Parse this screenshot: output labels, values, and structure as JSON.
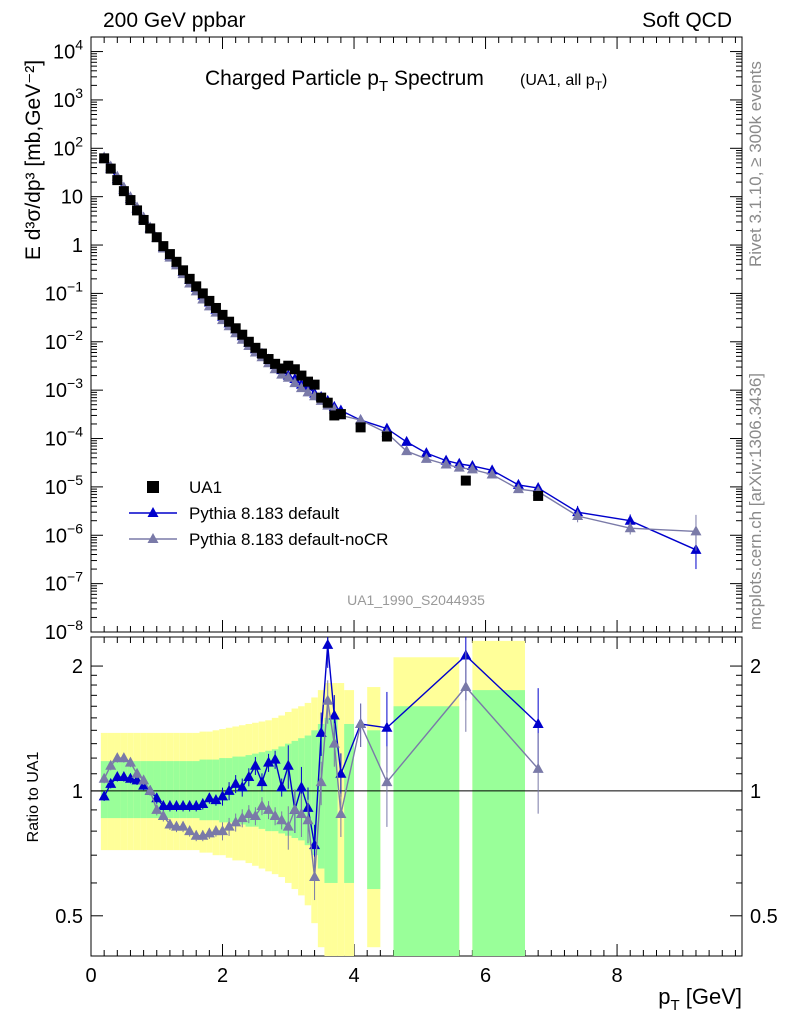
{
  "header": {
    "left": "200 GeV ppbar",
    "right": "Soft QCD"
  },
  "side_labels": {
    "rivet": "Rivet 3.1.10, ≥ 300k events",
    "mcplots": "mcplots.cern.ch [arXiv:1306.3436]"
  },
  "colors": {
    "data": "#000000",
    "default": "#0000cc",
    "nocr": "#7a7aa8",
    "band_inner": "#99ff99",
    "band_outer": "#ffff99"
  },
  "chart_data": [
    {
      "type": "line",
      "scale": "log",
      "title": "Charged Particle p",
      "title_sub": "T",
      "title_main_rest": " Spectrum",
      "title_note": "(UA1, all p",
      "title_note_sub": "T",
      "title_note_end": ")",
      "ylabel": "E d³σ/dp³ [mb,GeV⁻²]",
      "ylim": [
        1e-08,
        20000.0
      ],
      "xlim": [
        0,
        9.9
      ],
      "analysis": "UA1_1990_S2044935",
      "y_ticks": [
        {
          "v": 1e-08,
          "base": "10",
          "exp": "−8"
        },
        {
          "v": 1e-07,
          "base": "10",
          "exp": "−7"
        },
        {
          "v": 1e-06,
          "base": "10",
          "exp": "−6"
        },
        {
          "v": 1e-05,
          "base": "10",
          "exp": "−5"
        },
        {
          "v": 0.0001,
          "base": "10",
          "exp": "−4"
        },
        {
          "v": 0.001,
          "base": "10",
          "exp": "−3"
        },
        {
          "v": 0.01,
          "base": "10",
          "exp": "−2"
        },
        {
          "v": 0.1,
          "base": "10",
          "exp": "−1"
        },
        {
          "v": 1,
          "base": "1",
          "exp": ""
        },
        {
          "v": 10,
          "base": "10",
          "exp": ""
        },
        {
          "v": 100,
          "base": "10",
          "exp": "2"
        },
        {
          "v": 1000,
          "base": "10",
          "exp": "3"
        },
        {
          "v": 10000,
          "base": "10",
          "exp": "4"
        }
      ],
      "legend": [
        "UA1",
        "Pythia 8.183 default",
        "Pythia 8.183 default-noCR"
      ],
      "x": [
        0.2,
        0.3,
        0.4,
        0.5,
        0.6,
        0.7,
        0.8,
        0.9,
        1.0,
        1.1,
        1.2,
        1.3,
        1.4,
        1.5,
        1.6,
        1.7,
        1.8,
        1.9,
        2.0,
        2.1,
        2.2,
        2.3,
        2.4,
        2.5,
        2.6,
        2.7,
        2.8,
        2.9,
        3.0,
        3.1,
        3.2,
        3.3,
        3.4,
        3.5,
        3.6,
        3.7,
        3.8,
        4.1,
        4.5,
        5.7,
        6.8
      ],
      "series": [
        {
          "name": "UA1",
          "values": [
            62,
            38,
            22,
            13,
            8.5,
            5.2,
            3.3,
            2.2,
            1.45,
            0.95,
            0.65,
            0.45,
            0.3,
            0.2,
            0.14,
            0.1,
            0.07,
            0.05,
            0.036,
            0.026,
            0.019,
            0.014,
            0.01,
            0.0075,
            0.0057,
            0.0044,
            0.0035,
            0.0028,
            0.0032,
            0.0027,
            0.002,
            0.0015,
            0.0013,
            0.0007,
            0.00055,
            0.0003,
            0.00032,
            0.00017,
            0.00011,
            1.35e-05,
            6.5e-06
          ]
        },
        {
          "name": "Pythia 8.183 default",
          "x": [
            0.2,
            0.3,
            0.4,
            0.5,
            0.6,
            0.7,
            0.8,
            0.9,
            1.0,
            1.1,
            1.2,
            1.3,
            1.4,
            1.5,
            1.6,
            1.7,
            1.8,
            1.9,
            2.0,
            2.1,
            2.2,
            2.3,
            2.4,
            2.5,
            2.6,
            2.7,
            2.8,
            2.9,
            3.0,
            3.1,
            3.2,
            3.3,
            3.4,
            3.5,
            3.6,
            3.7,
            3.8,
            4.1,
            4.5,
            4.8,
            5.1,
            5.4,
            5.6,
            5.8,
            6.1,
            6.5,
            6.8,
            7.4,
            8.2,
            9.2
          ],
          "values": [
            60,
            38,
            23,
            14,
            9,
            5.6,
            3.5,
            2.2,
            1.4,
            0.9,
            0.6,
            0.42,
            0.28,
            0.19,
            0.13,
            0.09,
            0.065,
            0.046,
            0.033,
            0.024,
            0.018,
            0.013,
            0.0095,
            0.007,
            0.0056,
            0.0043,
            0.0033,
            0.0026,
            0.002,
            0.0017,
            0.0013,
            0.0012,
            0.00085,
            0.00072,
            0.0006,
            0.00045,
            0.00038,
            0.00024,
            0.00016,
            8.5e-05,
            5e-05,
            3.5e-05,
            3e-05,
            2.7e-05,
            2.2e-05,
            1.1e-05,
            9.5e-06,
            3e-06,
            2e-06,
            5e-07
          ]
        },
        {
          "name": "Pythia 8.183 default-noCR",
          "x": [
            0.2,
            0.3,
            0.4,
            0.5,
            0.6,
            0.7,
            0.8,
            0.9,
            1.0,
            1.1,
            1.2,
            1.3,
            1.4,
            1.5,
            1.6,
            1.7,
            1.8,
            1.9,
            2.0,
            2.1,
            2.2,
            2.3,
            2.4,
            2.5,
            2.6,
            2.7,
            2.8,
            2.9,
            3.0,
            3.1,
            3.2,
            3.3,
            3.4,
            3.5,
            3.6,
            3.7,
            3.8,
            4.1,
            4.5,
            4.8,
            5.1,
            5.4,
            5.6,
            5.8,
            6.1,
            6.5,
            6.8,
            7.4,
            8.2,
            9.2
          ],
          "values": [
            65,
            42,
            26,
            15.5,
            9.8,
            6,
            3.7,
            2.3,
            1.4,
            0.85,
            0.55,
            0.38,
            0.25,
            0.16,
            0.11,
            0.075,
            0.054,
            0.04,
            0.028,
            0.021,
            0.015,
            0.011,
            0.0082,
            0.006,
            0.0048,
            0.0036,
            0.0027,
            0.0021,
            0.0018,
            0.0014,
            0.0011,
            0.0009,
            0.00075,
            0.0006,
            0.00048,
            0.0004,
            0.0003,
            0.00024,
            0.00013,
            5.5e-05,
            3.8e-05,
            2.9e-05,
            2.5e-05,
            2.3e-05,
            1.8e-05,
            9e-06,
            8e-06,
            2.5e-06,
            1.4e-06,
            1.2e-06
          ]
        }
      ]
    },
    {
      "type": "line",
      "scale": "log",
      "ylabel": "Ratio to UA1",
      "xlabel": "p",
      "xlabel_sub": "T",
      "xlabel_unit": " [GeV]",
      "ylim": [
        0.4,
        2.35
      ],
      "xlim": [
        0,
        9.9
      ],
      "x_ticks": [
        "0",
        "2",
        "4",
        "6",
        "8"
      ],
      "x_tick_values": [
        0,
        2,
        4,
        6,
        8
      ],
      "y_ticks": [
        "0.5",
        "1",
        "2"
      ],
      "y_tick_values": [
        0.5,
        1,
        2
      ],
      "bands": {
        "x_edges": [
          0.15,
          0.25,
          0.35,
          0.45,
          0.55,
          0.65,
          0.75,
          0.85,
          0.95,
          1.05,
          1.15,
          1.25,
          1.35,
          1.45,
          1.55,
          1.65,
          1.75,
          1.85,
          1.95,
          2.05,
          2.15,
          2.25,
          2.35,
          2.45,
          2.55,
          2.65,
          2.75,
          2.85,
          2.95,
          3.05,
          3.15,
          3.25,
          3.35,
          3.45,
          3.55,
          3.65,
          3.75,
          3.85,
          4.0,
          4.2,
          4.4,
          4.6,
          5.6,
          5.8,
          6.6,
          7.0
        ],
        "inner_lo": [
          0.86,
          0.86,
          0.86,
          0.86,
          0.86,
          0.86,
          0.86,
          0.86,
          0.86,
          0.86,
          0.86,
          0.86,
          0.86,
          0.86,
          0.86,
          0.85,
          0.85,
          0.85,
          0.84,
          0.84,
          0.83,
          0.83,
          0.82,
          0.82,
          0.81,
          0.8,
          0.8,
          0.79,
          0.78,
          0.77,
          0.76,
          0.74,
          0.7,
          0.65,
          0.6,
          0.6,
          null,
          0.6,
          null,
          0.58,
          null,
          0.4,
          null,
          0.4,
          null
        ],
        "inner_hi": [
          1.18,
          1.18,
          1.18,
          1.18,
          1.18,
          1.18,
          1.18,
          1.18,
          1.18,
          1.18,
          1.18,
          1.18,
          1.18,
          1.18,
          1.18,
          1.19,
          1.19,
          1.19,
          1.2,
          1.2,
          1.21,
          1.21,
          1.22,
          1.23,
          1.24,
          1.25,
          1.26,
          1.28,
          1.3,
          1.32,
          1.34,
          1.36,
          1.4,
          1.45,
          1.5,
          1.5,
          null,
          1.45,
          null,
          1.4,
          null,
          1.6,
          null,
          1.75,
          null
        ],
        "outer_lo": [
          0.72,
          0.72,
          0.72,
          0.72,
          0.72,
          0.72,
          0.72,
          0.72,
          0.72,
          0.72,
          0.72,
          0.72,
          0.72,
          0.72,
          0.72,
          0.71,
          0.71,
          0.7,
          0.7,
          0.69,
          0.68,
          0.68,
          0.67,
          0.66,
          0.65,
          0.64,
          0.63,
          0.62,
          0.6,
          0.58,
          0.56,
          0.53,
          0.48,
          0.42,
          0.4,
          0.4,
          0.4,
          0.4,
          null,
          0.42,
          null,
          0.4,
          null,
          0.4,
          null
        ],
        "outer_hi": [
          1.38,
          1.38,
          1.38,
          1.38,
          1.38,
          1.38,
          1.38,
          1.38,
          1.38,
          1.38,
          1.38,
          1.38,
          1.38,
          1.38,
          1.38,
          1.39,
          1.39,
          1.4,
          1.41,
          1.42,
          1.43,
          1.44,
          1.45,
          1.46,
          1.47,
          1.48,
          1.5,
          1.52,
          1.55,
          1.58,
          1.6,
          1.63,
          1.68,
          1.75,
          1.82,
          1.82,
          1.82,
          1.75,
          null,
          1.78,
          null,
          2.1,
          null,
          2.3,
          null
        ]
      },
      "series": [
        {
          "name": "Pythia 8.183 default",
          "x": [
            0.2,
            0.3,
            0.4,
            0.5,
            0.6,
            0.7,
            0.8,
            0.9,
            1.0,
            1.1,
            1.2,
            1.3,
            1.4,
            1.5,
            1.6,
            1.7,
            1.8,
            1.9,
            2.0,
            2.1,
            2.2,
            2.3,
            2.4,
            2.5,
            2.6,
            2.7,
            2.8,
            2.9,
            3.0,
            3.1,
            3.2,
            3.3,
            3.4,
            3.5,
            3.6,
            3.7,
            3.8,
            4.1,
            4.5,
            5.7,
            6.8
          ],
          "values": [
            0.97,
            1.04,
            1.08,
            1.08,
            1.07,
            1.06,
            1.03,
            1.0,
            0.96,
            0.92,
            0.92,
            0.92,
            0.92,
            0.92,
            0.92,
            0.93,
            0.96,
            0.95,
            0.97,
            1.0,
            1.04,
            1.02,
            1.08,
            1.15,
            1.05,
            1.17,
            1.19,
            1.02,
            1.15,
            0.9,
            1.02,
            0.91,
            0.74,
            1.38,
            2.25,
            1.52,
            1.1,
            1.45,
            1.42,
            2.12,
            1.45
          ]
        },
        {
          "name": "Pythia 8.183 default-noCR",
          "x": [
            0.2,
            0.3,
            0.4,
            0.5,
            0.6,
            0.7,
            0.8,
            0.9,
            1.0,
            1.1,
            1.2,
            1.3,
            1.4,
            1.5,
            1.6,
            1.7,
            1.8,
            1.9,
            2.0,
            2.1,
            2.2,
            2.3,
            2.4,
            2.5,
            2.6,
            2.7,
            2.8,
            2.9,
            3.0,
            3.1,
            3.2,
            3.3,
            3.4,
            3.5,
            3.6,
            3.7,
            3.8,
            4.1,
            4.5,
            5.7,
            6.8
          ],
          "values": [
            1.07,
            1.15,
            1.2,
            1.2,
            1.17,
            1.1,
            1.06,
            1.0,
            0.9,
            0.87,
            0.83,
            0.82,
            0.82,
            0.8,
            0.78,
            0.78,
            0.79,
            0.8,
            0.8,
            0.82,
            0.84,
            0.86,
            0.88,
            0.87,
            0.92,
            0.9,
            0.87,
            0.85,
            0.82,
            0.9,
            0.88,
            0.85,
            0.62,
            1.05,
            1.65,
            1.3,
            0.88,
            1.45,
            1.05,
            1.78,
            1.13
          ]
        }
      ]
    }
  ]
}
